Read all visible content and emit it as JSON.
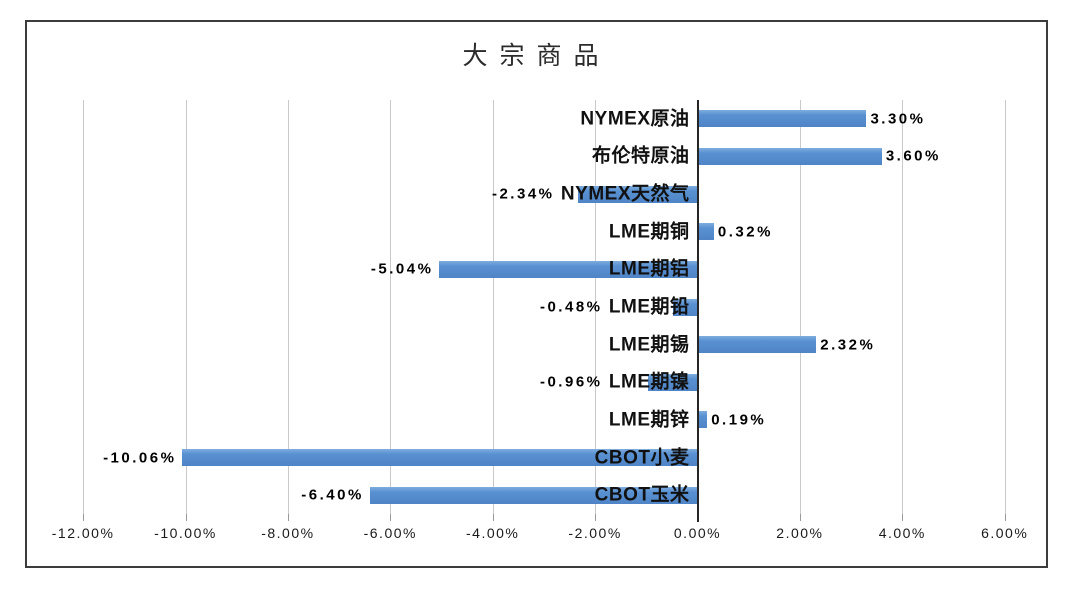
{
  "chart_data": {
    "type": "bar",
    "orientation": "horizontal",
    "title": "大宗商品",
    "categories": [
      "NYMEX原油",
      "布伦特原油",
      "NYMEX天然气",
      "LME期铜",
      "LME期铝",
      "LME期铅",
      "LME期锡",
      "LME期镍",
      "LME期锌",
      "CBOT小麦",
      "CBOT玉米"
    ],
    "values": [
      3.3,
      3.6,
      -2.34,
      0.32,
      -5.04,
      -0.48,
      2.32,
      -0.96,
      0.19,
      -10.06,
      -6.4
    ],
    "value_labels": [
      "3.30%",
      "3.60%",
      "-2.34%",
      "0.32%",
      "-5.04%",
      "-0.48%",
      "2.32%",
      "-0.96%",
      "0.19%",
      "-10.06%",
      "-6.40%"
    ],
    "x_tick_values": [
      -12,
      -10,
      -8,
      -6,
      -4,
      -2,
      0,
      2,
      4,
      6
    ],
    "x_tick_labels": [
      "-12.00%",
      "-10.00%",
      "-8.00%",
      "-6.00%",
      "-4.00%",
      "-2.00%",
      "0.00%",
      "2.00%",
      "4.00%",
      "6.00%"
    ],
    "xlim": [
      -12,
      6
    ],
    "grid": true,
    "legend": false,
    "colors": {
      "bar": "#5890D1",
      "bar_highlight": "#7FAEDE",
      "bar_shadow": "#4F85C6",
      "gridline": "#C9C9C9",
      "axis_tick": "#999999",
      "zero_axis": "#262626",
      "frame_border": "#3C3C3C",
      "text": "#111111",
      "background": "#FFFFFF"
    }
  }
}
